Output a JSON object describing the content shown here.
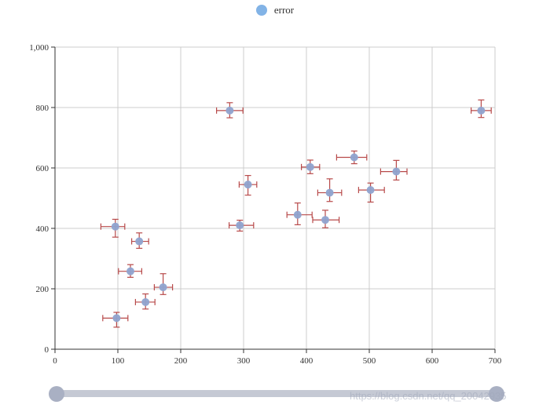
{
  "legend": {
    "label": "error"
  },
  "watermark": "https://blog.csdn.net/qq_20042935",
  "colors": {
    "marker": "#8fa3cf",
    "error_bar": "#b84a4a",
    "legend_dot": "#82b3e6",
    "grid": "#cccccc",
    "axis": "#333333",
    "slider_track": "#c5c9d4",
    "slider_handle": "#a9b0c3"
  },
  "slider": {
    "start": 0,
    "end": 1
  },
  "chart_data": {
    "type": "scatter",
    "title": "",
    "xlabel": "",
    "ylabel": "",
    "xlim": [
      0,
      700
    ],
    "ylim": [
      0,
      1000
    ],
    "x_ticks": [
      "0",
      "100",
      "200",
      "300",
      "400",
      "500",
      "600",
      "700"
    ],
    "y_ticks": [
      "0",
      "200",
      "400",
      "600",
      "800",
      "1,000"
    ],
    "grid": true,
    "legend_position": "top-center",
    "series": [
      {
        "name": "error",
        "points": [
          {
            "x": 278,
            "y": 790,
            "x_err": [
              257,
              299
            ],
            "y_err": [
              766,
              816
            ]
          },
          {
            "x": 678,
            "y": 790,
            "x_err": [
              662,
              694
            ],
            "y_err": [
              767,
              825
            ]
          },
          {
            "x": 476,
            "y": 635,
            "x_err": [
              448,
              496
            ],
            "y_err": [
              614,
              656
            ]
          },
          {
            "x": 406,
            "y": 603,
            "x_err": [
              392,
              421
            ],
            "y_err": [
              581,
              626
            ]
          },
          {
            "x": 543,
            "y": 588,
            "x_err": [
              518,
              560
            ],
            "y_err": [
              560,
              625
            ]
          },
          {
            "x": 307,
            "y": 545,
            "x_err": [
              293,
              321
            ],
            "y_err": [
              510,
              575
            ]
          },
          {
            "x": 502,
            "y": 527,
            "x_err": [
              483,
              524
            ],
            "y_err": [
              487,
              550
            ]
          },
          {
            "x": 437,
            "y": 518,
            "x_err": [
              418,
              456
            ],
            "y_err": [
              489,
              564
            ]
          },
          {
            "x": 386,
            "y": 445,
            "x_err": [
              369,
              409
            ],
            "y_err": [
              412,
              484
            ]
          },
          {
            "x": 430,
            "y": 428,
            "x_err": [
              410,
              452
            ],
            "y_err": [
              402,
              460
            ]
          },
          {
            "x": 294,
            "y": 410,
            "x_err": [
              277,
              316
            ],
            "y_err": [
              391,
              427
            ]
          },
          {
            "x": 96,
            "y": 406,
            "x_err": [
              73,
              111
            ],
            "y_err": [
              371,
              430
            ]
          },
          {
            "x": 134,
            "y": 357,
            "x_err": [
              122,
              149
            ],
            "y_err": [
              334,
              385
            ]
          },
          {
            "x": 120,
            "y": 258,
            "x_err": [
              101,
              138
            ],
            "y_err": [
              238,
              280
            ]
          },
          {
            "x": 172,
            "y": 205,
            "x_err": [
              158,
              187
            ],
            "y_err": [
              181,
              250
            ]
          },
          {
            "x": 144,
            "y": 156,
            "x_err": [
              128,
              159
            ],
            "y_err": [
              133,
              183
            ]
          },
          {
            "x": 98,
            "y": 103,
            "x_err": [
              76,
              116
            ],
            "y_err": [
              73,
              122
            ]
          }
        ]
      }
    ]
  }
}
